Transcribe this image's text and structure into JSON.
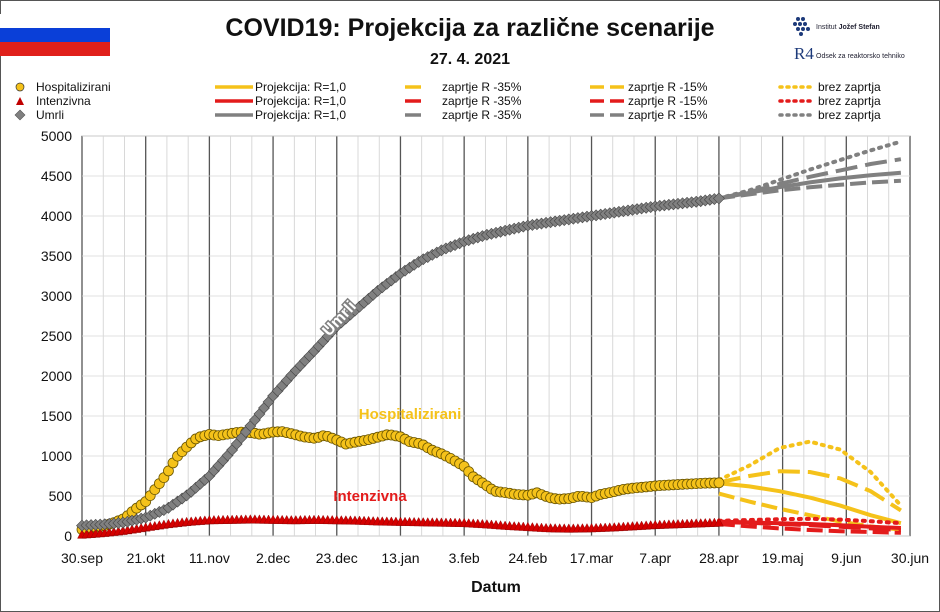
{
  "header": {
    "title": "COVID19: Projekcija za različne scenarije",
    "date": "27. 4. 2021",
    "logo1_text_a": "Institut ",
    "logo1_text_b": "Jožef Stefan",
    "logo2_text": "Odsek za reaktorsko tehniko",
    "logo2_mark": "R4"
  },
  "legend": {
    "rows": [
      {
        "series": "Hospitalizirani",
        "color": "#f5c21a",
        "marker": "circle"
      },
      {
        "series": "Intenzivna",
        "color": "#e31b1b",
        "marker": "triangle"
      },
      {
        "series": "Umrli",
        "color": "#808080",
        "marker": "diamond"
      }
    ],
    "projection_label": "Projekcija: R=1,0",
    "scenario_35": "zaprtje R -35%",
    "scenario_15": "zaprtje R -15%",
    "scenario_none": "brez zaprtja"
  },
  "colors": {
    "hospitalizirani": "#f5c21a",
    "intenzivna": "#e31b1b",
    "umrli": "#808080"
  },
  "chart_data": {
    "type": "line",
    "xlabel": "Datum",
    "ylabel": "",
    "ylim": [
      0,
      5000
    ],
    "yticks": [
      0,
      500,
      1000,
      1500,
      2000,
      2500,
      3000,
      3500,
      4000,
      4500,
      5000
    ],
    "x_tick_labels": [
      "30.sep",
      "21.okt",
      "11.nov",
      "2.dec",
      "23.dec",
      "13.jan",
      "3.feb",
      "24.feb",
      "17.mar",
      "7.apr",
      "28.apr",
      "19.maj",
      "9.jun",
      "30.jun"
    ],
    "grid": true,
    "annotations": [
      {
        "text": "Umrli",
        "color": "#808080"
      },
      {
        "text": "Hospitalizirani",
        "color": "#f5c21a"
      },
      {
        "text": "Intenzivna",
        "color": "#e31b1b"
      }
    ],
    "observed": [
      {
        "name": "Hospitalizirani",
        "x": [
          0,
          3,
          7,
          10,
          14,
          17,
          21,
          24,
          28,
          31,
          35,
          38,
          42,
          45,
          49,
          52,
          56,
          59,
          63,
          66,
          70,
          73,
          77,
          80,
          84,
          87,
          91,
          94,
          98,
          101,
          105,
          108,
          112,
          115,
          119,
          122,
          126,
          129,
          133,
          136,
          140,
          143,
          147,
          150,
          154,
          157,
          161,
          164,
          168,
          171,
          175,
          178,
          182,
          185,
          190,
          195,
          200,
          205,
          210
        ],
        "y": [
          80,
          100,
          125,
          160,
          220,
          320,
          430,
          580,
          780,
          980,
          1130,
          1230,
          1270,
          1255,
          1280,
          1300,
          1290,
          1270,
          1300,
          1305,
          1270,
          1240,
          1220,
          1260,
          1200,
          1150,
          1180,
          1200,
          1240,
          1270,
          1240,
          1180,
          1150,
          1080,
          1020,
          960,
          870,
          740,
          640,
          560,
          540,
          520,
          510,
          540,
          480,
          460,
          470,
          500,
          480,
          520,
          550,
          580,
          600,
          610,
          630,
          640,
          650,
          660,
          665
        ]
      },
      {
        "name": "Intenzivna",
        "x": [
          0,
          7,
          14,
          21,
          28,
          35,
          42,
          49,
          56,
          63,
          70,
          77,
          84,
          91,
          98,
          105,
          112,
          119,
          126,
          133,
          140,
          147,
          154,
          161,
          168,
          175,
          182,
          189,
          196,
          203,
          210
        ],
        "y": [
          20,
          40,
          70,
          110,
          150,
          180,
          200,
          205,
          210,
          205,
          200,
          205,
          200,
          195,
          185,
          180,
          175,
          170,
          165,
          150,
          130,
          115,
          100,
          95,
          100,
          110,
          125,
          140,
          150,
          160,
          170
        ]
      },
      {
        "name": "Umrli",
        "x": [
          0,
          7,
          14,
          21,
          28,
          35,
          42,
          49,
          56,
          63,
          70,
          77,
          84,
          91,
          98,
          105,
          112,
          119,
          126,
          133,
          140,
          147,
          154,
          161,
          168,
          175,
          182,
          189,
          196,
          203,
          210
        ],
        "y": [
          130,
          145,
          170,
          230,
          340,
          520,
          750,
          1050,
          1400,
          1750,
          2050,
          2330,
          2620,
          2850,
          3080,
          3280,
          3450,
          3580,
          3680,
          3760,
          3820,
          3880,
          3920,
          3960,
          4000,
          4040,
          4080,
          4120,
          4150,
          4180,
          4220
        ]
      }
    ],
    "projections": [
      {
        "name": "Hospitalizirani",
        "scenario": "Projekcija: R=1,0",
        "x": [
          210,
          220,
          230,
          240,
          250,
          260,
          270
        ],
        "y": [
          660,
          620,
          560,
          480,
          380,
          260,
          160
        ]
      },
      {
        "name": "Hospitalizirani",
        "scenario": "zaprtje R -35%",
        "x": [
          210,
          220,
          230,
          240,
          250,
          260,
          270
        ],
        "y": [
          530,
          430,
          340,
          260,
          180,
          120,
          80
        ]
      },
      {
        "name": "Hospitalizirani",
        "scenario": "zaprtje R -15%",
        "x": [
          210,
          220,
          230,
          240,
          250,
          260,
          270
        ],
        "y": [
          670,
          750,
          810,
          800,
          720,
          560,
          320
        ]
      },
      {
        "name": "Hospitalizirani",
        "scenario": "brez zaprtja",
        "x": [
          210,
          220,
          230,
          240,
          250,
          260,
          270
        ],
        "y": [
          700,
          880,
          1100,
          1180,
          1080,
          800,
          380
        ]
      },
      {
        "name": "Intenzivna",
        "scenario": "Projekcija: R=1,0",
        "x": [
          210,
          220,
          230,
          240,
          250,
          260,
          270
        ],
        "y": [
          180,
          170,
          160,
          150,
          135,
          115,
          100
        ]
      },
      {
        "name": "Intenzivna",
        "scenario": "zaprtje R -35%",
        "x": [
          210,
          220,
          230,
          240,
          250,
          260,
          270
        ],
        "y": [
          150,
          120,
          95,
          75,
          60,
          50,
          40
        ]
      },
      {
        "name": "Intenzivna",
        "scenario": "zaprtje R -15%",
        "x": [
          210,
          220,
          230,
          240,
          250,
          260,
          270
        ],
        "y": [
          175,
          165,
          150,
          135,
          115,
          95,
          75
        ]
      },
      {
        "name": "Intenzivna",
        "scenario": "brez zaprtja",
        "x": [
          210,
          220,
          230,
          240,
          250,
          260,
          270
        ],
        "y": [
          190,
          200,
          210,
          215,
          205,
          185,
          160
        ]
      },
      {
        "name": "Umrli",
        "scenario": "Projekcija: R=1,0",
        "x": [
          210,
          220,
          230,
          240,
          250,
          260,
          270
        ],
        "y": [
          4220,
          4290,
          4360,
          4420,
          4470,
          4510,
          4540
        ]
      },
      {
        "name": "Umrli",
        "scenario": "zaprtje R -35%",
        "x": [
          210,
          220,
          230,
          240,
          250,
          260,
          270
        ],
        "y": [
          4220,
          4270,
          4320,
          4360,
          4390,
          4420,
          4440
        ]
      },
      {
        "name": "Umrli",
        "scenario": "zaprtje R -15%",
        "x": [
          210,
          220,
          230,
          240,
          250,
          260,
          270
        ],
        "y": [
          4220,
          4300,
          4400,
          4490,
          4570,
          4650,
          4710
        ]
      },
      {
        "name": "Umrli",
        "scenario": "brez zaprtja",
        "x": [
          210,
          220,
          230,
          240,
          250,
          260,
          270
        ],
        "y": [
          4220,
          4320,
          4450,
          4580,
          4700,
          4820,
          4930
        ]
      }
    ]
  }
}
